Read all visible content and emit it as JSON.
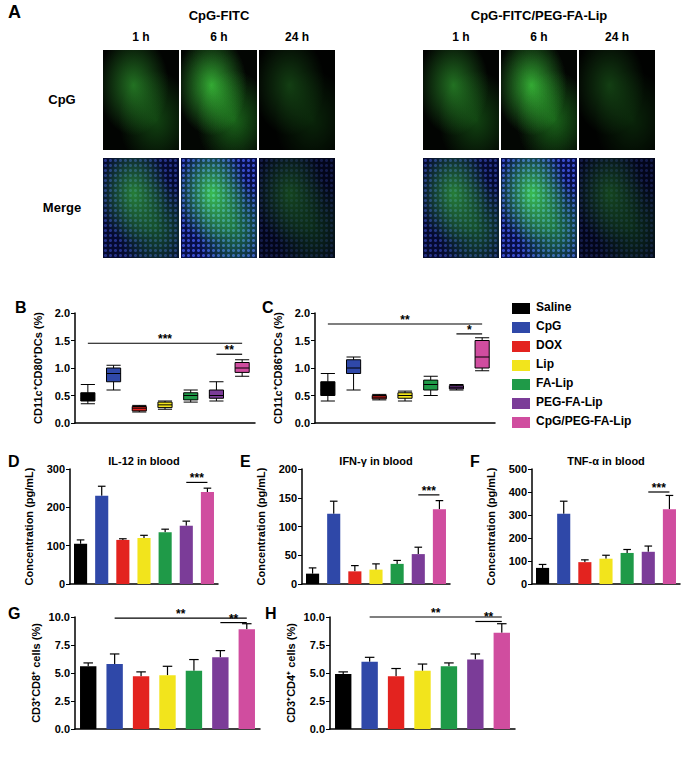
{
  "panel_a": {
    "panel": "A",
    "groups": [
      {
        "title": "CpG-FITC",
        "times": [
          "1 h",
          "6 h",
          "24 h"
        ]
      },
      {
        "title": "CpG-FITC/PEG-FA-Lip",
        "times": [
          "1 h",
          "6 h",
          "24 h"
        ]
      }
    ],
    "rows": [
      "CpG",
      "Merge"
    ]
  },
  "legend_entries": [
    {
      "name": "Saline",
      "color": "#000000"
    },
    {
      "name": "CpG",
      "color": "#2f48a8"
    },
    {
      "name": "DOX",
      "color": "#e3231f"
    },
    {
      "name": "Lip",
      "color": "#f2e41c"
    },
    {
      "name": "FA-Lip",
      "color": "#1f9a48"
    },
    {
      "name": "PEG-FA-Lip",
      "color": "#7b3c98"
    },
    {
      "name": "CpG/PEG-FA-Lip",
      "color": "#d04d9f"
    }
  ],
  "chart_data": [
    {
      "panel": "B",
      "type": "box",
      "y_label": "CD11c⁺CD80⁺DCs (%)",
      "categories": [
        "Saline",
        "CpG",
        "DOX",
        "Lip",
        "FA-Lip",
        "PEG-FA-Lip",
        "CpG/PEG-FA-Lip"
      ],
      "colors": [
        "#000000",
        "#2f48a8",
        "#e3231f",
        "#f2e41c",
        "#1f9a48",
        "#7b3c98",
        "#d04d9f"
      ],
      "boxes": [
        [
          0.35,
          0.4,
          0.45,
          0.55,
          0.7
        ],
        [
          0.6,
          0.75,
          0.9,
          1.0,
          1.05
        ],
        [
          0.2,
          0.22,
          0.27,
          0.3,
          0.32
        ],
        [
          0.25,
          0.28,
          0.33,
          0.38,
          0.4
        ],
        [
          0.38,
          0.42,
          0.5,
          0.55,
          0.6
        ],
        [
          0.4,
          0.45,
          0.5,
          0.6,
          0.75
        ],
        [
          0.85,
          0.92,
          1.0,
          1.1,
          1.15
        ]
      ],
      "ylim": [
        0,
        2
      ],
      "yticks": [
        {
          "value": 0,
          "label": "0.0"
        },
        {
          "value": 0.5,
          "label": "0.5"
        },
        {
          "value": 1,
          "label": "1.0"
        },
        {
          "value": 1.5,
          "label": "1.5"
        },
        {
          "value": 2,
          "label": "2.0"
        }
      ],
      "grid": false,
      "tick_labels": "y",
      "annotations": [
        {
          "from": "Saline",
          "to": "CpG/PEG-FA-Lip",
          "y": 1.45,
          "label": "***"
        },
        {
          "from": "PEG-FA-Lip",
          "to": "CpG/PEG-FA-Lip",
          "y": 1.25,
          "label": "**"
        }
      ]
    },
    {
      "panel": "C",
      "type": "box",
      "y_label": "CD11c⁺CD86⁺DCs (%)",
      "categories": [
        "Saline",
        "CpG",
        "DOX",
        "Lip",
        "FA-Lip",
        "PEG-FA-Lip",
        "CpG/PEG-FA-Lip"
      ],
      "colors": [
        "#000000",
        "#2f48a8",
        "#e3231f",
        "#f2e41c",
        "#1f9a48",
        "#7b3c98",
        "#d04d9f"
      ],
      "boxes": [
        [
          0.4,
          0.5,
          0.6,
          0.75,
          0.9
        ],
        [
          0.6,
          0.9,
          1.0,
          1.15,
          1.2
        ],
        [
          0.42,
          0.44,
          0.47,
          0.5,
          0.52
        ],
        [
          0.4,
          0.45,
          0.5,
          0.55,
          0.58
        ],
        [
          0.5,
          0.6,
          0.7,
          0.78,
          0.85
        ],
        [
          0.6,
          0.62,
          0.65,
          0.68,
          0.7
        ],
        [
          0.95,
          1.0,
          1.2,
          1.5,
          1.55
        ]
      ],
      "ylim": [
        0,
        2
      ],
      "yticks": [
        {
          "value": 0,
          "label": "0.0"
        },
        {
          "value": 0.5,
          "label": "0.5"
        },
        {
          "value": 1,
          "label": "1.0"
        },
        {
          "value": 1.5,
          "label": "1.5"
        },
        {
          "value": 2,
          "label": "2.0"
        }
      ],
      "grid": false,
      "tick_labels": "y",
      "annotations": [
        {
          "from": "Saline",
          "to": "CpG/PEG-FA-Lip",
          "y": 1.8,
          "label": "**"
        },
        {
          "from": "PEG-FA-Lip",
          "to": "CpG/PEG-FA-Lip",
          "y": 1.62,
          "label": "*"
        }
      ]
    },
    {
      "panel": "D",
      "type": "bar",
      "title": "IL-12 in blood",
      "y_label": "Concentration (pg/mL)",
      "categories": [
        "Saline",
        "CpG",
        "DOX",
        "Lip",
        "FA-Lip",
        "PEG-FA-Lip",
        "CpG/PEG-FA-Lip"
      ],
      "colors": [
        "#000000",
        "#2f48a8",
        "#e3231f",
        "#f2e41c",
        "#1f9a48",
        "#7b3c98",
        "#d04d9f"
      ],
      "values": [
        105,
        230,
        115,
        120,
        135,
        152,
        240
      ],
      "errors": [
        10,
        25,
        3,
        7,
        8,
        12,
        10
      ],
      "ylim": [
        0,
        300
      ],
      "yticks": [
        0,
        100,
        200,
        300
      ],
      "grid": false,
      "tick_labels": "y",
      "annotations": [
        {
          "from": "PEG-FA-Lip",
          "to": "CpG/PEG-FA-Lip",
          "y": 265,
          "label": "***"
        }
      ]
    },
    {
      "panel": "E",
      "type": "bar",
      "title": "IFN-γ in blood",
      "y_label": "Concentration (pg/mL)",
      "categories": [
        "Saline",
        "CpG",
        "DOX",
        "Lip",
        "FA-Lip",
        "PEG-FA-Lip",
        "CpG/PEG-FA-Lip"
      ],
      "colors": [
        "#000000",
        "#2f48a8",
        "#e3231f",
        "#f2e41c",
        "#1f9a48",
        "#7b3c98",
        "#d04d9f"
      ],
      "values": [
        18,
        122,
        22,
        25,
        35,
        52,
        130
      ],
      "errors": [
        10,
        22,
        10,
        10,
        6,
        12,
        15
      ],
      "ylim": [
        0,
        200
      ],
      "yticks": [
        0,
        50,
        100,
        150,
        200
      ],
      "grid": false,
      "tick_labels": "y",
      "annotations": [
        {
          "from": "PEG-FA-Lip",
          "to": "CpG/PEG-FA-Lip",
          "y": 155,
          "label": "***"
        }
      ]
    },
    {
      "panel": "F",
      "type": "bar",
      "title": "TNF-α in blood",
      "y_label": "Concentration (pg/mL)",
      "categories": [
        "Saline",
        "CpG",
        "DOX",
        "Lip",
        "FA-Lip",
        "PEG-FA-Lip",
        "CpG/PEG-FA-Lip"
      ],
      "colors": [
        "#000000",
        "#2f48a8",
        "#e3231f",
        "#f2e41c",
        "#1f9a48",
        "#7b3c98",
        "#d04d9f"
      ],
      "values": [
        70,
        305,
        95,
        110,
        135,
        140,
        325
      ],
      "errors": [
        15,
        55,
        10,
        15,
        15,
        25,
        60
      ],
      "ylim": [
        0,
        500
      ],
      "yticks": [
        0,
        100,
        200,
        300,
        400,
        500
      ],
      "grid": false,
      "tick_labels": "y",
      "annotations": [
        {
          "from": "PEG-FA-Lip",
          "to": "CpG/PEG-FA-Lip",
          "y": 400,
          "label": "***"
        }
      ]
    },
    {
      "panel": "G",
      "type": "bar",
      "y_label": "CD3⁺CD8⁺ cells (%)",
      "categories": [
        "Saline",
        "CpG",
        "DOX",
        "Lip",
        "FA-Lip",
        "PEG-FA-Lip",
        "CpG/PEG-FA-Lip"
      ],
      "colors": [
        "#000000",
        "#2f48a8",
        "#e3231f",
        "#f2e41c",
        "#1f9a48",
        "#7b3c98",
        "#d04d9f"
      ],
      "values": [
        5.6,
        5.8,
        4.7,
        4.8,
        5.2,
        6.4,
        8.9
      ],
      "errors": [
        0.3,
        0.9,
        0.4,
        0.8,
        1.0,
        0.6,
        0.5
      ],
      "ylim": [
        0,
        10
      ],
      "yticks": [
        {
          "value": 0,
          "label": "0.0"
        },
        {
          "value": 2.5,
          "label": "2.5"
        },
        {
          "value": 5,
          "label": "5.0"
        },
        {
          "value": 7.5,
          "label": "7.5"
        },
        {
          "value": 10,
          "label": "10.0"
        }
      ],
      "grid": false,
      "tick_labels": "y",
      "annotations": [
        {
          "from": "CpG",
          "to": "CpG/PEG-FA-Lip",
          "y": 9.9,
          "label": "**"
        },
        {
          "from": "PEG-FA-Lip",
          "to": "CpG/PEG-FA-Lip",
          "y": 9.5,
          "label": "**"
        }
      ]
    },
    {
      "panel": "H",
      "type": "bar",
      "y_label": "CD3⁺CD4⁺ cells (%)",
      "categories": [
        "Saline",
        "CpG",
        "DOX",
        "Lip",
        "FA-Lip",
        "PEG-FA-Lip",
        "CpG/PEG-FA-Lip"
      ],
      "colors": [
        "#000000",
        "#2f48a8",
        "#e3231f",
        "#f2e41c",
        "#1f9a48",
        "#7b3c98",
        "#d04d9f"
      ],
      "values": [
        4.9,
        6.0,
        4.7,
        5.2,
        5.6,
        6.2,
        8.6
      ],
      "errors": [
        0.2,
        0.4,
        0.7,
        0.6,
        0.3,
        0.5,
        0.8
      ],
      "ylim": [
        0,
        10
      ],
      "yticks": [
        {
          "value": 0,
          "label": "0.0"
        },
        {
          "value": 2.5,
          "label": "2.5"
        },
        {
          "value": 5,
          "label": "5.0"
        },
        {
          "value": 7.5,
          "label": "7.5"
        },
        {
          "value": 10,
          "label": "10.0"
        }
      ],
      "grid": false,
      "tick_labels": "y",
      "annotations": [
        {
          "from": "CpG",
          "to": "CpG/PEG-FA-Lip",
          "y": 10,
          "label": "**"
        },
        {
          "from": "PEG-FA-Lip",
          "to": "CpG/PEG-FA-Lip",
          "y": 9.6,
          "label": "**"
        }
      ]
    }
  ]
}
